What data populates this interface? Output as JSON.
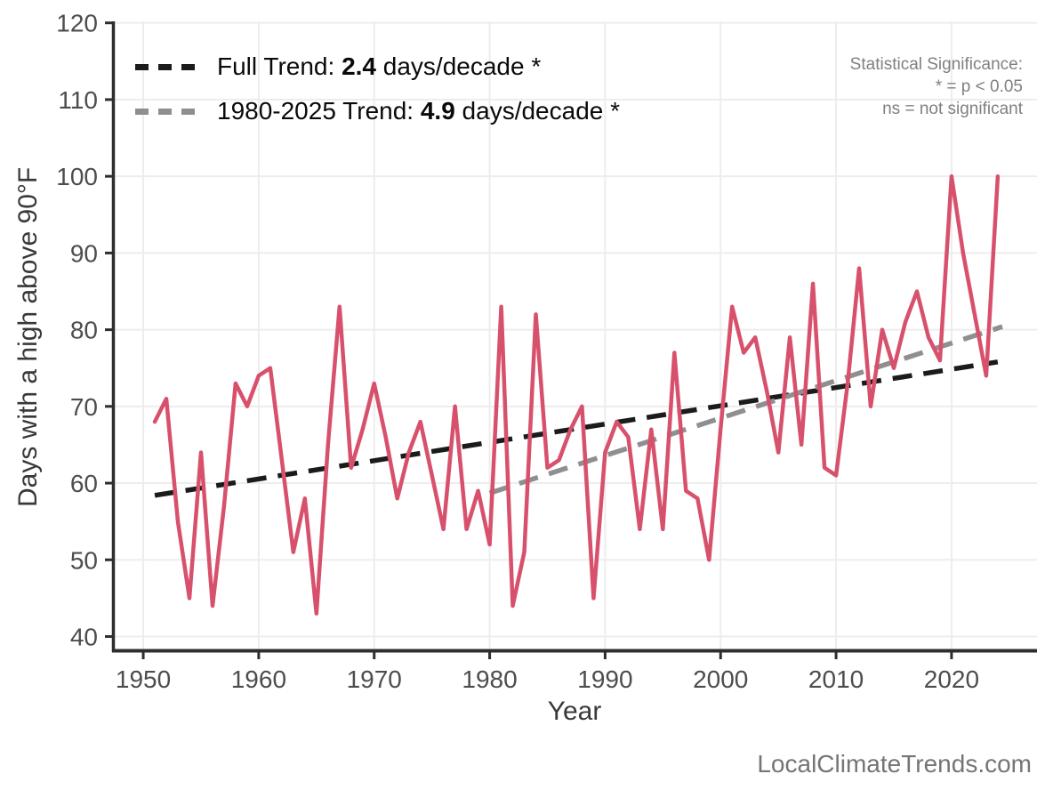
{
  "watermark": "LocalClimateTrends.com",
  "significance_note": {
    "line1": "Statistical Significance:",
    "line2": "* = p < 0.05",
    "line3": "ns = not significant"
  },
  "legend": {
    "full": {
      "prefix": "Full Trend: ",
      "value": "2.4",
      "suffix": " days/decade *"
    },
    "recent": {
      "prefix": "1980-2025 Trend: ",
      "value": "4.9",
      "suffix": " days/decade *"
    }
  },
  "chart_data": {
    "type": "line",
    "title": "",
    "xlabel": "Year",
    "ylabel": "Days with a high above 90°F",
    "x_ticks": [
      1950,
      1960,
      1970,
      1980,
      1990,
      2000,
      2010,
      2020
    ],
    "y_ticks": [
      40,
      50,
      60,
      70,
      80,
      90,
      100,
      110,
      120
    ],
    "xlim": [
      1947.3,
      2027.4
    ],
    "ylim": [
      38.2,
      120.2
    ],
    "grid": true,
    "legend_position": "top-left",
    "line_color": "#d8516c",
    "grid_color": "#ededed",
    "axis_color": "#2e2e2e",
    "years": [
      1951,
      1952,
      1953,
      1954,
      1955,
      1956,
      1957,
      1958,
      1959,
      1960,
      1961,
      1962,
      1963,
      1964,
      1965,
      1966,
      1967,
      1968,
      1969,
      1970,
      1971,
      1972,
      1973,
      1974,
      1975,
      1976,
      1977,
      1978,
      1979,
      1980,
      1981,
      1982,
      1983,
      1984,
      1985,
      1986,
      1987,
      1988,
      1989,
      1990,
      1991,
      1992,
      1993,
      1994,
      1995,
      1996,
      1997,
      1998,
      1999,
      2000,
      2001,
      2002,
      2003,
      2004,
      2005,
      2006,
      2007,
      2008,
      2009,
      2010,
      2011,
      2012,
      2013,
      2014,
      2015,
      2016,
      2017,
      2018,
      2019,
      2020,
      2021,
      2022,
      2023,
      2024
    ],
    "values": [
      68,
      71,
      55,
      45,
      64,
      44,
      57,
      73,
      70,
      74,
      75,
      63,
      51,
      58,
      43,
      65,
      83,
      62,
      67,
      73,
      66,
      58,
      64,
      68,
      61,
      54,
      70,
      54,
      59,
      52,
      83,
      44,
      51,
      82,
      62,
      63,
      67,
      70,
      45,
      64,
      68,
      66,
      54,
      67,
      54,
      77,
      59,
      58,
      50,
      67,
      83,
      77,
      79,
      72,
      64,
      79,
      65,
      86,
      62,
      61,
      73,
      88,
      70,
      80,
      75,
      81,
      85,
      79,
      76,
      100,
      90,
      82,
      74,
      100
    ],
    "trend_lines": [
      {
        "name": "Full Trend",
        "slope_days_per_decade": 2.4,
        "significant": true,
        "color": "#1b1b1b",
        "x0": 1951,
        "v0": 58.4,
        "x1": 2024,
        "v1": 75.8
      },
      {
        "name": "1980-2025 Trend",
        "slope_days_per_decade": 4.9,
        "significant": true,
        "color": "#8f8f8f",
        "x0": 1980,
        "v0": 58.7,
        "x1": 2024.4,
        "v1": 80.4
      }
    ]
  }
}
